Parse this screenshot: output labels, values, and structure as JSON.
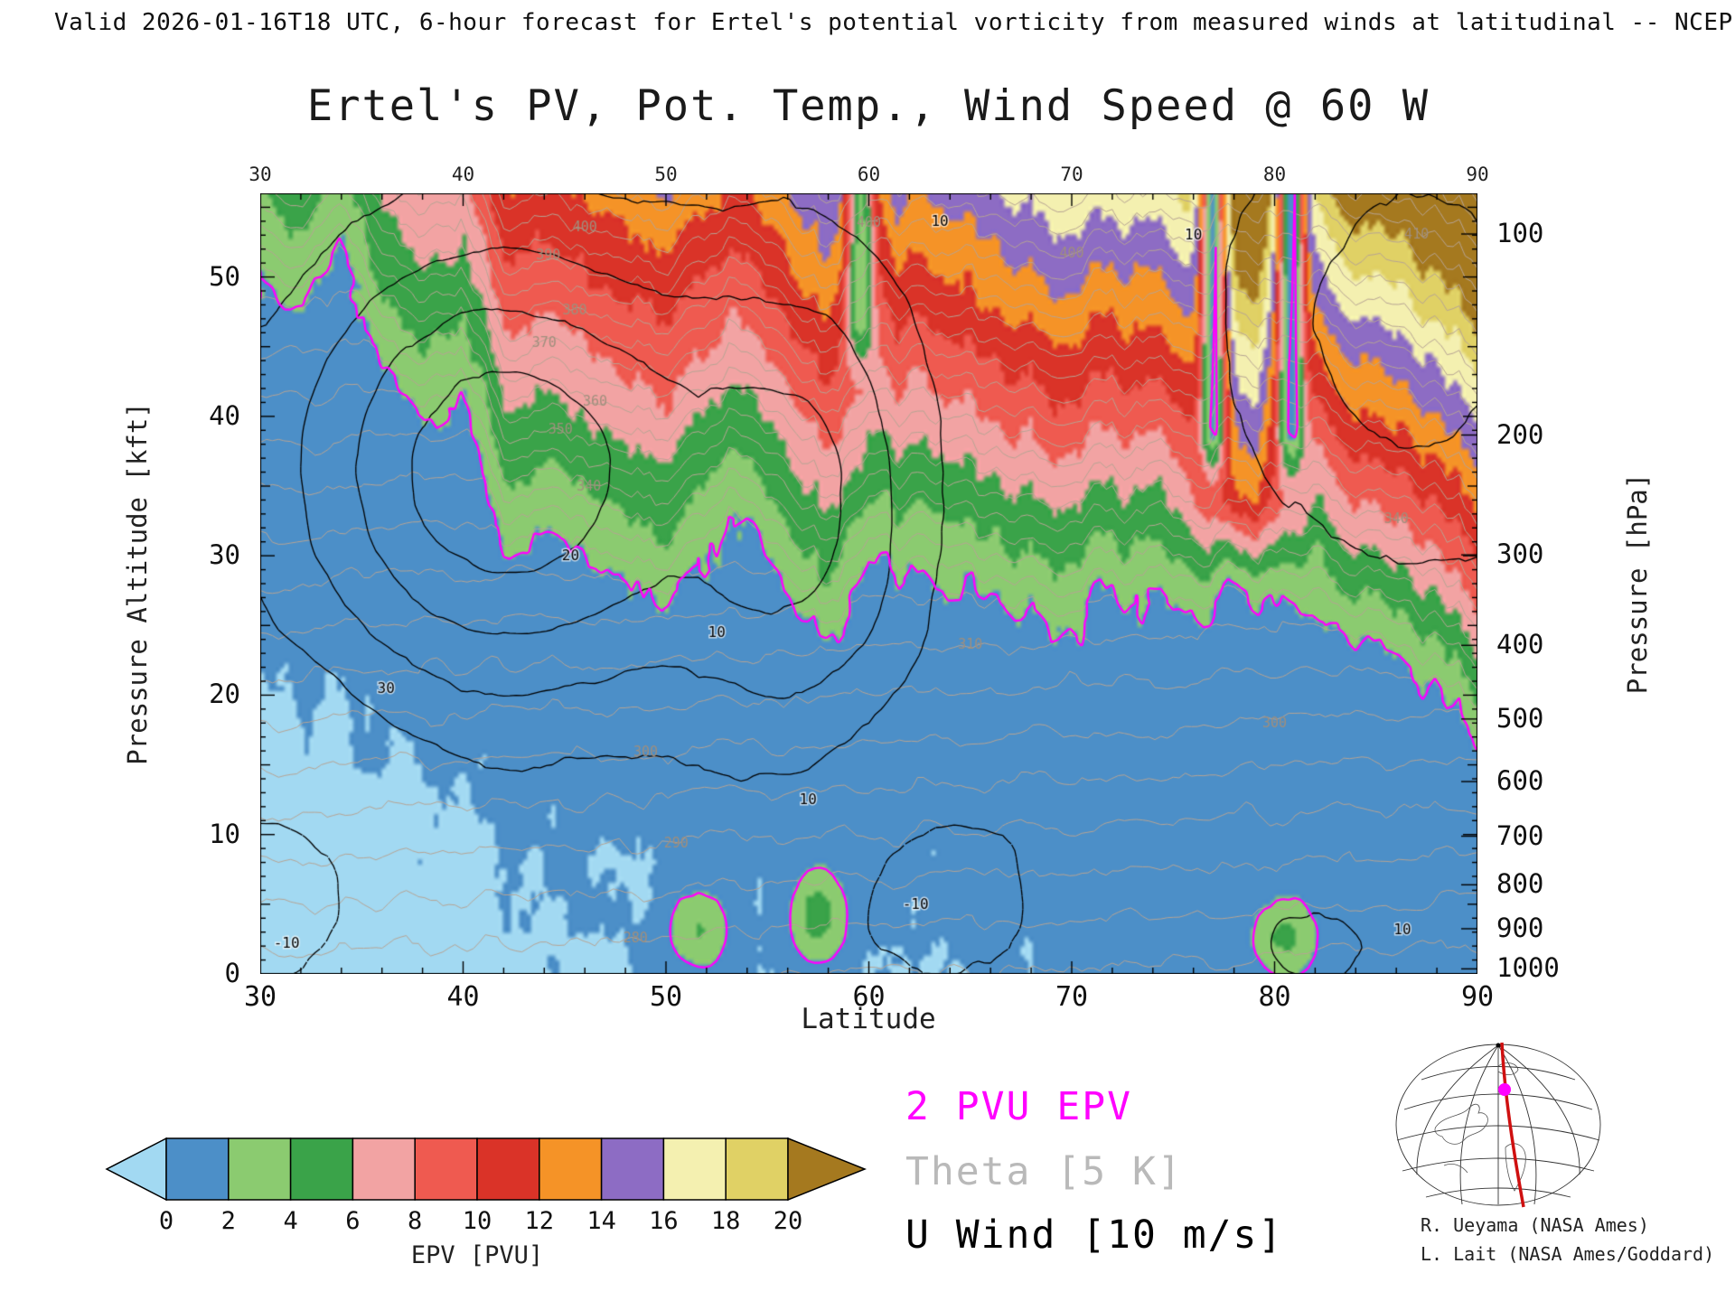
{
  "header": {
    "text": "Valid 2026-01-16T18 UTC, 6-hour forecast for Ertel's potential vorticity from measured winds at latitudinal -- NCEP"
  },
  "chart_data": {
    "type": "heatmap",
    "title": "Ertel's PV, Pot. Temp., Wind Speed @ 60 W",
    "xlabel": "Latitude",
    "ylabel_left": "Pressure Altitude [kft]",
    "ylabel_right": "Pressure [hPa]",
    "x_range": [
      30,
      90
    ],
    "x_major_ticks": [
      30,
      40,
      50,
      60,
      70,
      80,
      90
    ],
    "x_minor_step": 2,
    "y_left_kft_range": [
      0,
      56
    ],
    "y_left_major_ticks": [
      0,
      10,
      20,
      30,
      40,
      50
    ],
    "y_right_hpa_ticks": [
      100,
      200,
      300,
      400,
      500,
      600,
      700,
      800,
      900,
      1000
    ],
    "colorbar": {
      "label": "EPV [PVU]",
      "ticks": [
        0,
        2,
        4,
        6,
        8,
        10,
        12,
        14,
        16,
        18,
        20
      ],
      "under_color": "#a2d9f2",
      "colors": [
        "#4c8fc8",
        "#8bcb70",
        "#3aa349",
        "#f2a3a3",
        "#ef5a50",
        "#da3328",
        "#f59327",
        "#8d6cc4",
        "#f4f0b0",
        "#e0d165"
      ],
      "over_color": "#a5791f"
    },
    "legend": [
      {
        "label": "2 PVU EPV",
        "color": "#ff00ff"
      },
      {
        "label": "Theta [5 K]",
        "color": "#b9b9b9"
      },
      {
        "label": "U Wind [10 m/s]",
        "color": "#000000"
      }
    ],
    "contour_overlays": {
      "epv_contour_pvu": 2,
      "theta_interval_k": 5,
      "uwind_interval_ms": 10
    },
    "field_model": {
      "tropopause_kft_by_lat": {
        "lat": [
          30,
          32,
          34,
          36,
          38,
          40,
          42,
          44,
          46,
          48,
          50,
          52,
          54,
          56,
          58,
          60,
          62,
          64,
          66,
          68,
          70,
          72,
          74,
          76,
          78,
          80,
          82,
          84,
          86,
          88,
          90
        ],
        "kft": [
          50,
          46,
          53,
          44,
          40,
          42,
          30,
          33,
          31,
          28,
          26,
          31,
          33,
          27,
          23,
          28,
          30,
          29,
          27,
          26,
          25,
          28,
          27,
          26,
          27,
          25,
          26,
          24,
          23,
          20,
          16
        ]
      },
      "surface_pv_blobs": [
        {
          "lat": 51.5,
          "z": 3.0,
          "lat_sd": 1.2,
          "z_sd": 2.2,
          "amp": 4
        },
        {
          "lat": 57.5,
          "z": 4.0,
          "lat_sd": 1.0,
          "z_sd": 2.5,
          "amp": 5
        },
        {
          "lat": 80.5,
          "z": 2.5,
          "lat_sd": 1.2,
          "z_sd": 2.0,
          "amp": 4
        }
      ],
      "high_pv_intrusions": [
        {
          "lat": 78.5,
          "lat_sd": 1.4,
          "z_base": 28,
          "amp": 6
        }
      ],
      "low_pv_slots": [
        {
          "lat": 77.0,
          "lat_sd": 0.45,
          "z_base": 34,
          "depth": 0.92
        },
        {
          "lat": 80.9,
          "lat_sd": 0.5,
          "z_base": 34,
          "depth": 0.92
        },
        {
          "lat": 59.6,
          "lat_sd": 0.5,
          "z_base": 42,
          "depth": 0.75
        }
      ],
      "wind_jets": [
        {
          "amp": 48,
          "lat": 42,
          "lat_sd": 7.5,
          "z": 36,
          "z_sd": 12
        },
        {
          "amp": 28,
          "lat": 57,
          "lat_sd": 4.5,
          "z": 33,
          "z_sd": 14
        },
        {
          "amp": 25,
          "lat": 87,
          "lat_sd": 7.0,
          "z": 47,
          "z_sd": 13
        },
        {
          "amp": 12,
          "lat": 82,
          "lat_sd": 3.5,
          "z": 2,
          "z_sd": 4
        },
        {
          "amp": -16,
          "lat": 63,
          "lat_sd": 5.0,
          "z": 6,
          "z_sd": 7
        },
        {
          "amp": -14,
          "lat": 31,
          "lat_sd": 4.0,
          "z": 6,
          "z_sd": 8
        }
      ]
    },
    "theta_contour_labels": [
      {
        "value": 400,
        "lat": 46.0
      },
      {
        "value": 390,
        "lat": 44.2
      },
      {
        "value": 380,
        "lat": 45.5
      },
      {
        "value": 370,
        "lat": 44.0
      },
      {
        "value": 360,
        "lat": 46.5
      },
      {
        "value": 350,
        "lat": 44.8
      },
      {
        "value": 340,
        "lat": 46.2
      },
      {
        "value": 300,
        "lat": 49.0
      },
      {
        "value": 290,
        "lat": 50.5
      },
      {
        "value": 280,
        "lat": 48.5
      },
      {
        "value": 400,
        "lat": 60.0
      },
      {
        "value": 400,
        "lat": 70.0
      },
      {
        "value": 300,
        "lat": 80.0
      },
      {
        "value": 340,
        "lat": 86.0
      },
      {
        "value": 410,
        "lat": 87.0
      },
      {
        "value": 310,
        "lat": 65.0
      }
    ],
    "wind_contour_labels": [
      {
        "text": "30",
        "lat": 36.2,
        "z": 20.5
      },
      {
        "text": "-10",
        "lat": 31.3,
        "z": 2.2
      },
      {
        "text": "20",
        "lat": 45.3,
        "z": 30.0
      },
      {
        "text": "10",
        "lat": 52.5,
        "z": 24.5
      },
      {
        "text": "10",
        "lat": 63.5,
        "z": 54.0
      },
      {
        "text": "-10",
        "lat": 62.3,
        "z": 5.0
      },
      {
        "text": "10",
        "lat": 86.3,
        "z": 3.2
      },
      {
        "text": "10",
        "lat": 57.0,
        "z": 12.5
      },
      {
        "text": "10",
        "lat": 76.0,
        "z": 53.0
      }
    ]
  },
  "credits": {
    "line1": "R. Ueyama (NASA Ames)",
    "line2": "L. Lait (NASA Ames/Goddard)"
  }
}
